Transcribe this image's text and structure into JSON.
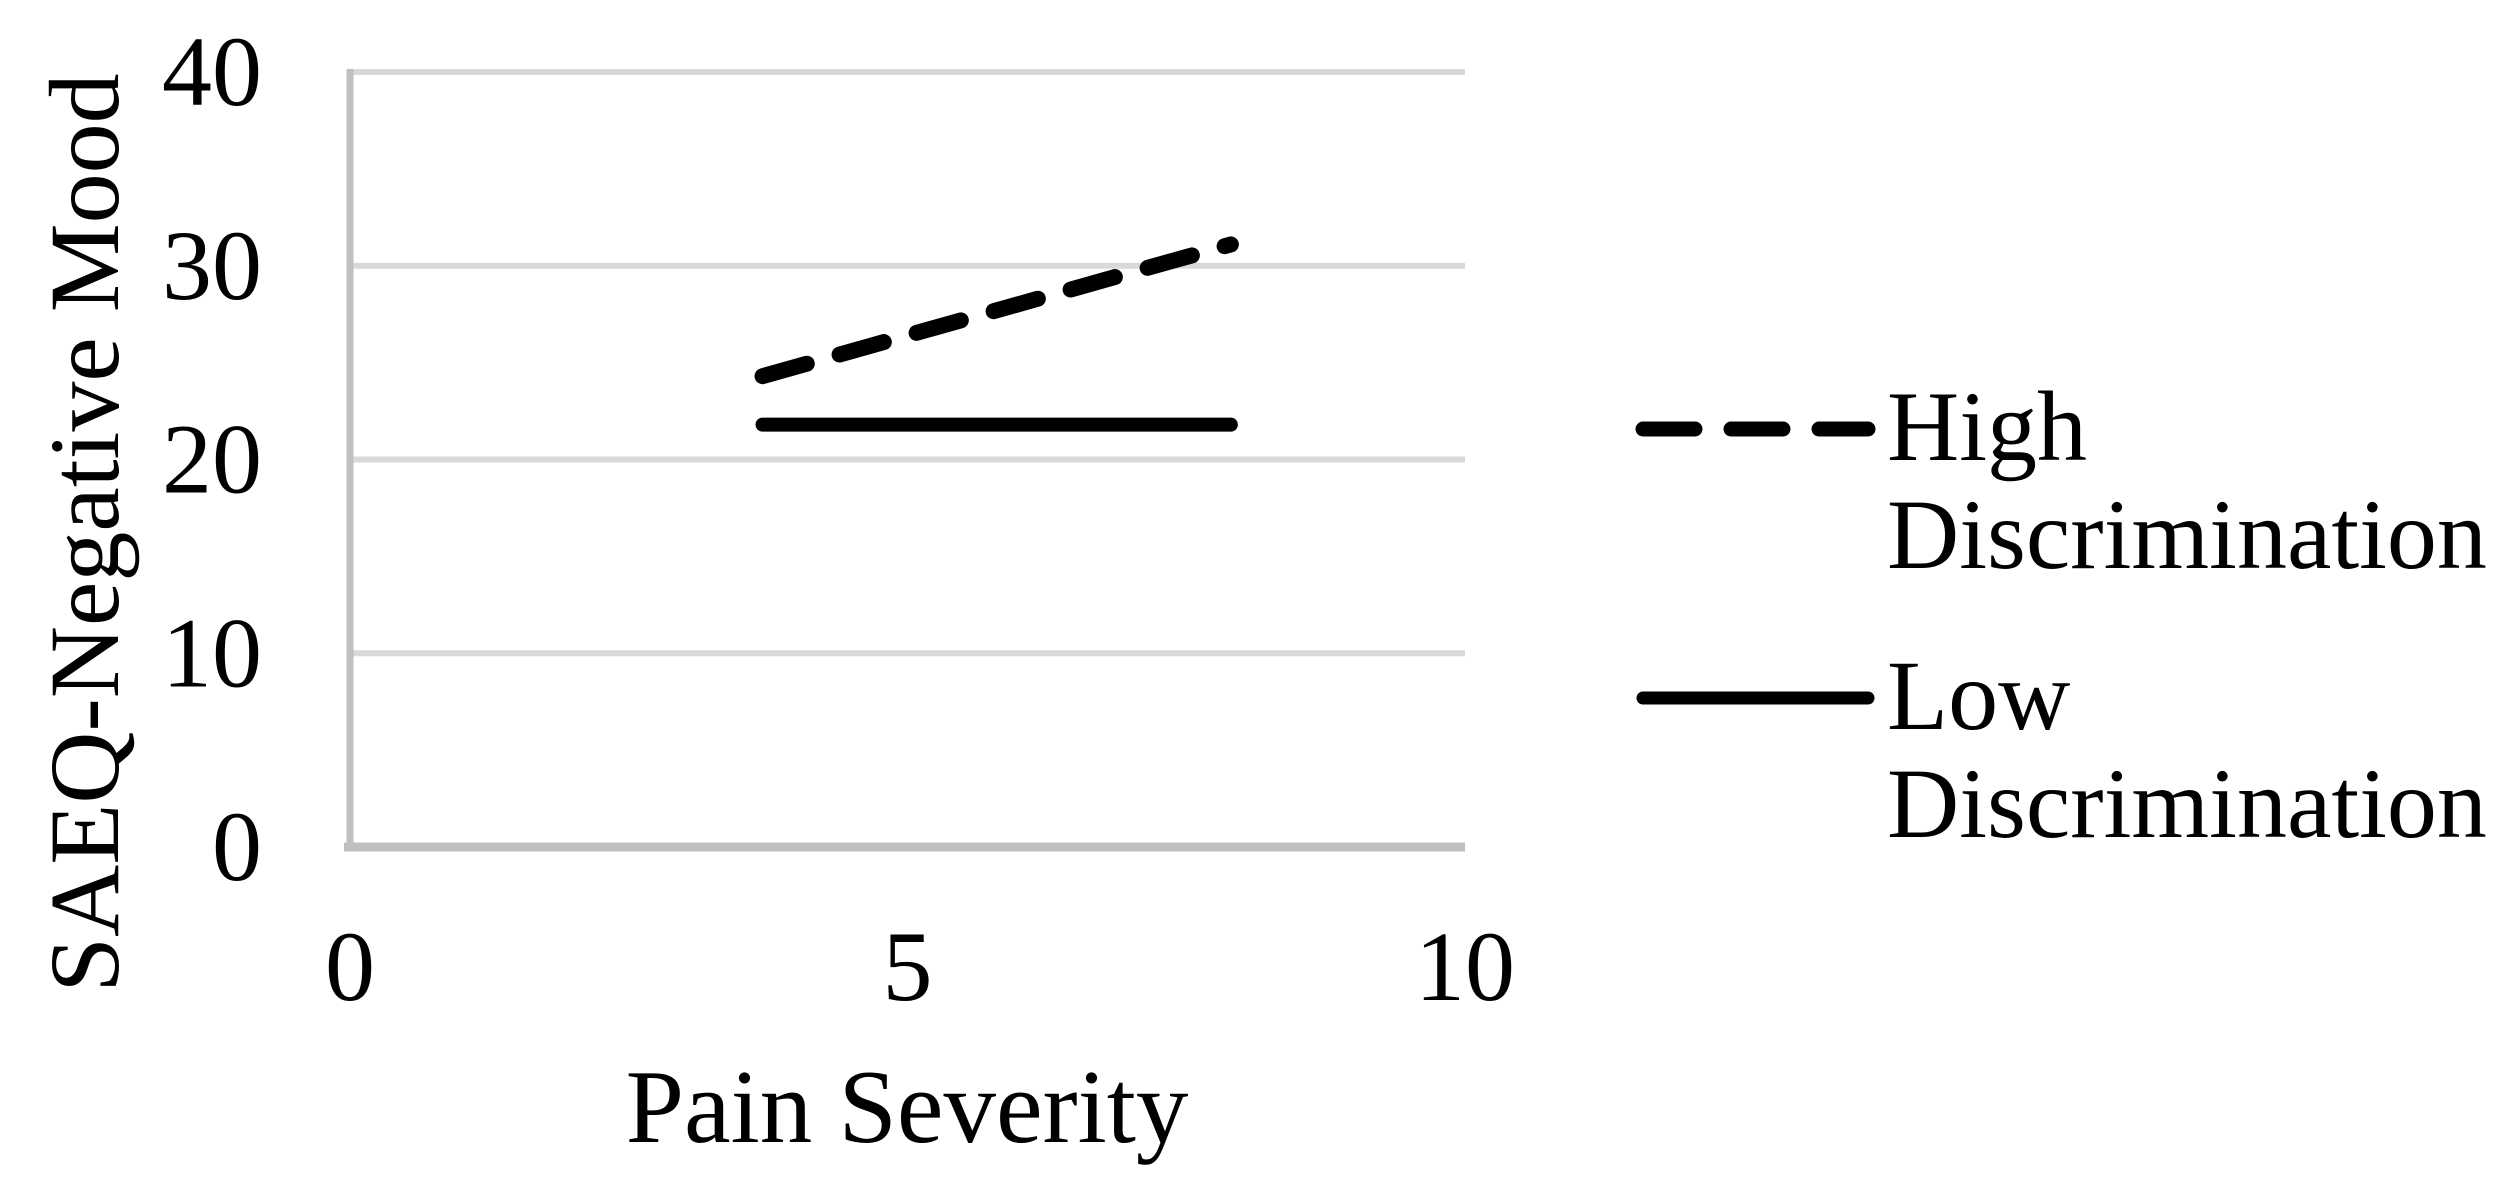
{
  "chart_data": {
    "type": "line",
    "xlabel": "Pain Severity",
    "ylabel": "SAEQ-Negative Mood",
    "xlim": [
      0,
      10
    ],
    "ylim": [
      0,
      40
    ],
    "x_ticks": [
      0,
      5,
      10
    ],
    "y_ticks": [
      0,
      10,
      20,
      30,
      40
    ],
    "grid": "horizontal-gridlines-on",
    "legend_position": "right",
    "series": [
      {
        "name": "High Discrimination",
        "style": "dashed",
        "x": [
          3.7,
          7.9
        ],
        "values": [
          24.3,
          31.1
        ]
      },
      {
        "name": "Low Discrimination",
        "style": "solid",
        "x": [
          3.7,
          7.9
        ],
        "values": [
          21.8,
          21.8
        ]
      }
    ]
  },
  "legend": {
    "items": [
      {
        "label": "High Discrimination",
        "sample": "dashed-line"
      },
      {
        "label": "Low Discrimination",
        "sample": "solid-line"
      }
    ]
  },
  "colors": {
    "background": "#ffffff",
    "line": "#000000",
    "gridline": "#d9d9d9",
    "axis_line": "#bfbfbf",
    "text": "#000000"
  }
}
